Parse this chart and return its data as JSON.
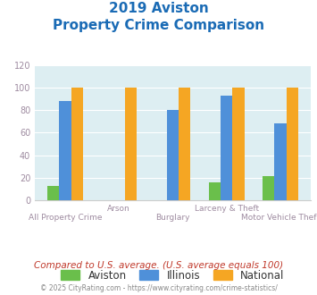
{
  "title_line1": "2019 Aviston",
  "title_line2": "Property Crime Comparison",
  "categories": [
    "All Property Crime",
    "Arson",
    "Burglary",
    "Larceny & Theft",
    "Motor Vehicle Theft"
  ],
  "aviston": [
    13,
    0,
    0,
    16,
    22
  ],
  "illinois": [
    88,
    0,
    80,
    93,
    68
  ],
  "national": [
    100,
    100,
    100,
    100,
    100
  ],
  "aviston_color": "#6abf4b",
  "illinois_color": "#4f90d9",
  "national_color": "#f5a623",
  "title_color": "#1a6bb5",
  "xlabel_color": "#9e8ba0",
  "ylabel_color": "#9e8ba0",
  "plot_bg": "#ddeef2",
  "ylim": [
    0,
    120
  ],
  "yticks": [
    0,
    20,
    40,
    60,
    80,
    100,
    120
  ],
  "footnote1": "Compared to U.S. average. (U.S. average equals 100)",
  "footnote2": "© 2025 CityRating.com - https://www.cityrating.com/crime-statistics/",
  "footnote1_color": "#c0392b",
  "footnote2_color": "#888888",
  "legend_labels": [
    "Aviston",
    "Illinois",
    "National"
  ],
  "top_labels": [
    "",
    "Arson",
    "",
    "Larceny & Theft",
    ""
  ],
  "bottom_labels": [
    "All Property Crime",
    "",
    "Burglary",
    "",
    "Motor Vehicle Theft"
  ]
}
